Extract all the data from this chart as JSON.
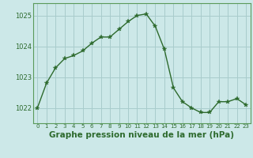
{
  "x": [
    0,
    1,
    2,
    3,
    4,
    5,
    6,
    7,
    8,
    9,
    10,
    11,
    12,
    13,
    14,
    15,
    16,
    17,
    18,
    19,
    20,
    21,
    22,
    23
  ],
  "y": [
    1022.0,
    1022.8,
    1023.3,
    1023.6,
    1023.7,
    1023.85,
    1024.1,
    1024.3,
    1024.3,
    1024.55,
    1024.8,
    1025.0,
    1025.05,
    1024.65,
    1023.9,
    1022.65,
    1022.2,
    1022.0,
    1021.85,
    1021.85,
    1022.2,
    1022.2,
    1022.3,
    1022.1
  ],
  "line_color": "#2d6a2d",
  "marker": "*",
  "marker_size": 4,
  "bg_color": "#cce8e8",
  "grid_color": "#a8cccc",
  "axis_color": "#2d6a2d",
  "border_color": "#5a9a5a",
  "xlabel": "Graphe pression niveau de la mer (hPa)",
  "xlabel_fontsize": 7.5,
  "ylabel_ticks": [
    1022,
    1023,
    1024,
    1025
  ],
  "xlim": [
    -0.5,
    23.5
  ],
  "ylim": [
    1021.5,
    1025.4
  ],
  "title": ""
}
